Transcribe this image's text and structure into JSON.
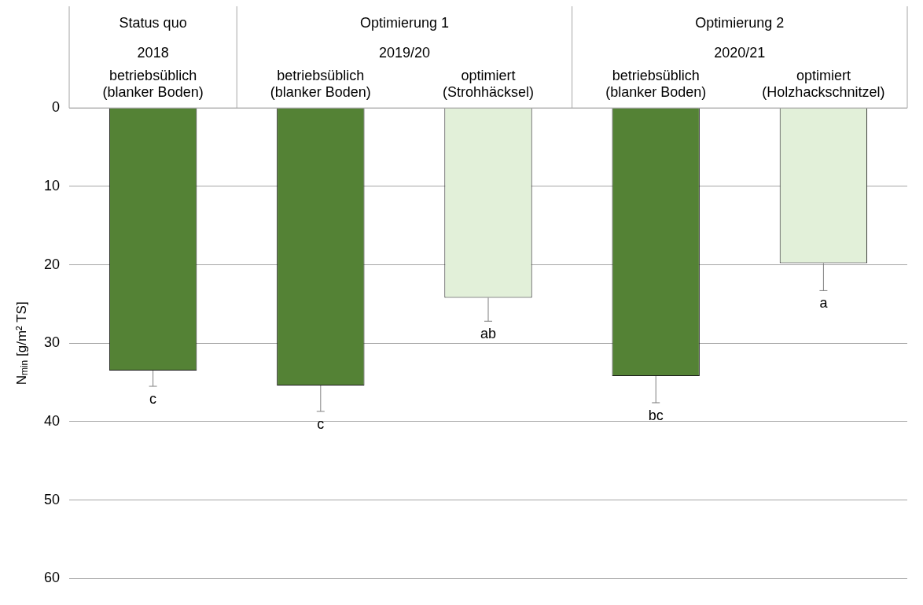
{
  "chart_data": {
    "type": "bar",
    "categories": [
      "betriebsüblich\n(blanker Boden)",
      "betriebsüblich\n(blanker Boden)",
      "optimiert\n(Strohhäcksel)",
      "betriebsüblich\n(blanker Boden)",
      "optimiert\n(Holzhackschnitzel)"
    ],
    "values": [
      33.5,
      35.4,
      24.2,
      34.2,
      19.8
    ],
    "colors": [
      "#548235",
      "#548235",
      "#e2f0d9",
      "#548235",
      "#e2f0d9"
    ],
    "errors": [
      [
        33.5,
        35.5
      ],
      [
        35.4,
        38.7
      ],
      [
        24.2,
        27.2
      ],
      [
        34.2,
        37.6
      ],
      [
        19.8,
        23.3
      ]
    ],
    "value_labels": [
      "c",
      "c",
      "ab",
      "bc",
      "a"
    ],
    "annotations": [
      "Status quo\n2018",
      "Optimierung 1\n2019/20",
      "Optimierung 2\n2020/21"
    ],
    "ylabel": "N$_{min}$ [g/m² TS]",
    "ylim": [
      60,
      0
    ],
    "yticks": [
      0,
      10,
      20,
      30,
      40,
      50,
      60
    ],
    "grid": "y",
    "legend": false
  }
}
